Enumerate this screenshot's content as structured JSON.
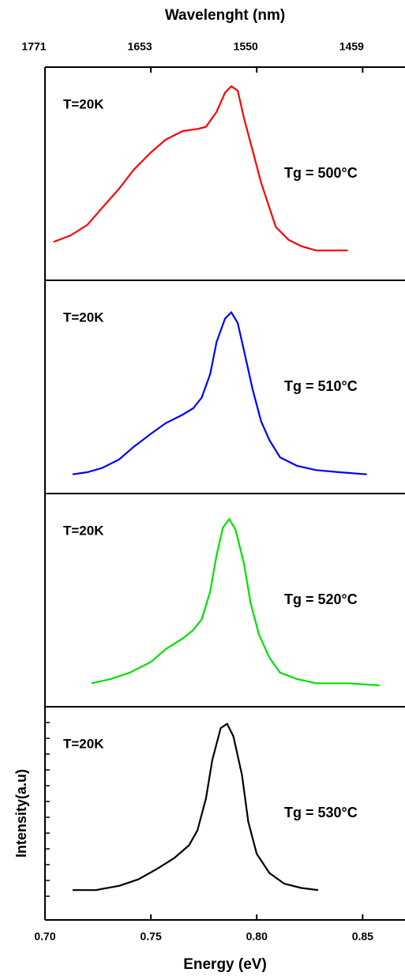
{
  "chart_data": {
    "type": "line",
    "x2label": "Wavelenght (nm)",
    "xlabel": "Energy (eV)",
    "ylabel": "Intensity(a.u)",
    "xlim": [
      0.7,
      0.87
    ],
    "ylim": [
      0,
      1
    ],
    "xticks": [
      {
        "value": 0.7,
        "label": "0.70"
      },
      0.75,
      {
        "value": 0.8,
        "label": "0.80"
      },
      0.85
    ],
    "x2ticks": [
      {
        "value": 0.7,
        "label": "1771"
      },
      {
        "value": 0.75,
        "label": "1653"
      },
      {
        "value": 0.8,
        "label": "1550"
      },
      {
        "value": 0.85,
        "label": "1459"
      }
    ],
    "panels": [
      {
        "temperature": "T=20K",
        "growth": "Tg = 500°C",
        "color": "#ff0000",
        "x": [
          0.704,
          0.712,
          0.72,
          0.727,
          0.735,
          0.742,
          0.75,
          0.757,
          0.765,
          0.772,
          0.776,
          0.781,
          0.785,
          0.788,
          0.791,
          0.794,
          0.798,
          0.802,
          0.806,
          0.809,
          0.815,
          0.821,
          0.828,
          0.835,
          0.843
        ],
        "values": [
          0.18,
          0.21,
          0.26,
          0.34,
          0.43,
          0.52,
          0.6,
          0.66,
          0.7,
          0.71,
          0.72,
          0.79,
          0.88,
          0.91,
          0.89,
          0.76,
          0.61,
          0.46,
          0.34,
          0.25,
          0.19,
          0.16,
          0.14,
          0.14,
          0.14
        ]
      },
      {
        "temperature": "T=20K",
        "growth": "Tg = 510°C",
        "color": "#0000ff",
        "x": [
          0.713,
          0.72,
          0.727,
          0.735,
          0.742,
          0.75,
          0.757,
          0.765,
          0.77,
          0.774,
          0.778,
          0.781,
          0.785,
          0.788,
          0.791,
          0.794,
          0.798,
          0.802,
          0.806,
          0.811,
          0.819,
          0.828,
          0.839,
          0.852
        ],
        "values": [
          0.09,
          0.1,
          0.12,
          0.16,
          0.22,
          0.28,
          0.33,
          0.37,
          0.4,
          0.45,
          0.56,
          0.71,
          0.82,
          0.85,
          0.8,
          0.67,
          0.49,
          0.34,
          0.25,
          0.17,
          0.13,
          0.11,
          0.1,
          0.09
        ]
      },
      {
        "temperature": "T=20K",
        "growth": "Tg = 520°C",
        "color": "#00e000",
        "x": [
          0.722,
          0.731,
          0.74,
          0.75,
          0.757,
          0.765,
          0.77,
          0.774,
          0.778,
          0.781,
          0.784,
          0.787,
          0.79,
          0.794,
          0.797,
          0.801,
          0.806,
          0.811,
          0.819,
          0.828,
          0.843,
          0.858
        ],
        "values": [
          0.11,
          0.13,
          0.16,
          0.21,
          0.27,
          0.32,
          0.36,
          0.41,
          0.54,
          0.71,
          0.84,
          0.88,
          0.83,
          0.67,
          0.49,
          0.34,
          0.23,
          0.16,
          0.13,
          0.11,
          0.11,
          0.1
        ]
      },
      {
        "temperature": "T=20K",
        "growth": "Tg = 530°C",
        "color": "#000000",
        "x": [
          0.713,
          0.724,
          0.735,
          0.744,
          0.753,
          0.761,
          0.768,
          0.772,
          0.776,
          0.779,
          0.783,
          0.786,
          0.789,
          0.793,
          0.796,
          0.8,
          0.806,
          0.813,
          0.821,
          0.829
        ],
        "values": [
          0.14,
          0.14,
          0.16,
          0.19,
          0.24,
          0.29,
          0.35,
          0.42,
          0.57,
          0.75,
          0.9,
          0.92,
          0.86,
          0.68,
          0.46,
          0.31,
          0.22,
          0.17,
          0.15,
          0.14
        ]
      }
    ]
  }
}
